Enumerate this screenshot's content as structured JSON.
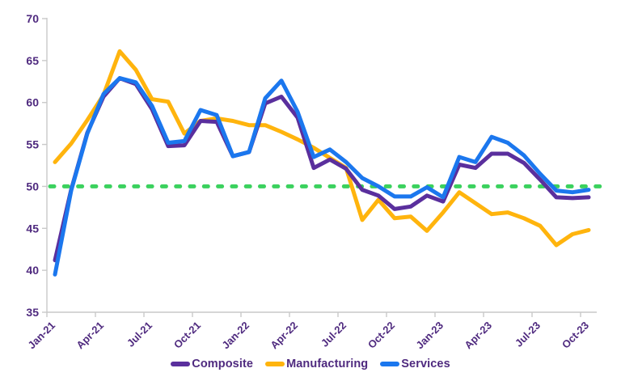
{
  "chart_data": {
    "type": "line",
    "title": "",
    "categories": [
      "Jan-21",
      "Feb-21",
      "Mar-21",
      "Apr-21",
      "May-21",
      "Jun-21",
      "Jul-21",
      "Aug-21",
      "Sep-21",
      "Oct-21",
      "Nov-21",
      "Dec-21",
      "Jan-22",
      "Feb-22",
      "Mar-22",
      "Apr-22",
      "May-22",
      "Jun-22",
      "Jul-22",
      "Aug-22",
      "Sep-22",
      "Oct-22",
      "Nov-22",
      "Dec-22",
      "Jan-23",
      "Feb-23",
      "Mar-23",
      "Apr-23",
      "May-23",
      "Jun-23",
      "Jul-23",
      "Aug-23",
      "Sep-23",
      "Oct-23"
    ],
    "x_tick_labels": [
      "Jan-21",
      "Apr-21",
      "Jul-21",
      "Oct-21",
      "Jan-22",
      "Apr-22",
      "Jul-22",
      "Oct-22",
      "Jan-23",
      "Apr-23",
      "Jul-23",
      "Oct-23"
    ],
    "x_tick_every": 3,
    "series": [
      {
        "name": "Composite",
        "color": "#5a2f9d",
        "values": [
          41.2,
          49.6,
          56.4,
          60.7,
          62.9,
          62.2,
          59.2,
          54.8,
          54.9,
          57.8,
          57.7,
          53.6,
          54.1,
          59.9,
          60.7,
          58.2,
          52.2,
          53.2,
          52.1,
          49.6,
          48.9,
          47.3,
          47.6,
          48.9,
          48.2,
          52.6,
          52.2,
          53.9,
          53.9,
          52.8,
          50.8,
          48.7,
          48.6,
          48.7
        ]
      },
      {
        "name": "Manufacturing",
        "color": "#ffb40d",
        "values": [
          52.9,
          55.1,
          57.9,
          60.9,
          66.1,
          63.9,
          60.4,
          60.1,
          56.3,
          57.8,
          58.1,
          57.8,
          57.3,
          57.3,
          56.5,
          55.6,
          54.6,
          53.4,
          52.2,
          46.0,
          48.4,
          46.2,
          46.4,
          44.7,
          46.9,
          49.3,
          48.0,
          46.7,
          46.9,
          46.2,
          45.3,
          43.0,
          44.3,
          44.8
        ]
      },
      {
        "name": "Services",
        "color": "#1b77ee",
        "values": [
          39.5,
          49.5,
          56.3,
          61.0,
          62.9,
          62.4,
          59.6,
          55.2,
          55.4,
          59.1,
          58.5,
          53.6,
          54.1,
          60.5,
          62.6,
          58.9,
          53.5,
          54.4,
          52.9,
          51.0,
          50.0,
          48.8,
          48.8,
          49.9,
          48.7,
          53.5,
          52.9,
          55.9,
          55.2,
          53.7,
          51.5,
          49.5,
          49.3,
          49.6
        ]
      }
    ],
    "reference_line": {
      "value": 50,
      "style": "dashed",
      "color": "#3bd15e"
    },
    "ylim": [
      35,
      70
    ],
    "y_tick_step": 5,
    "y_tick_labels": [
      "35",
      "40",
      "45",
      "50",
      "55",
      "60",
      "65",
      "70"
    ],
    "grid": false,
    "legend_position": "bottom",
    "legend_labels": [
      "Composite",
      "Manufacturing",
      "Services"
    ],
    "axis_label_color": "#4f2a7f",
    "axis_line_color": "#c9c9c9"
  }
}
